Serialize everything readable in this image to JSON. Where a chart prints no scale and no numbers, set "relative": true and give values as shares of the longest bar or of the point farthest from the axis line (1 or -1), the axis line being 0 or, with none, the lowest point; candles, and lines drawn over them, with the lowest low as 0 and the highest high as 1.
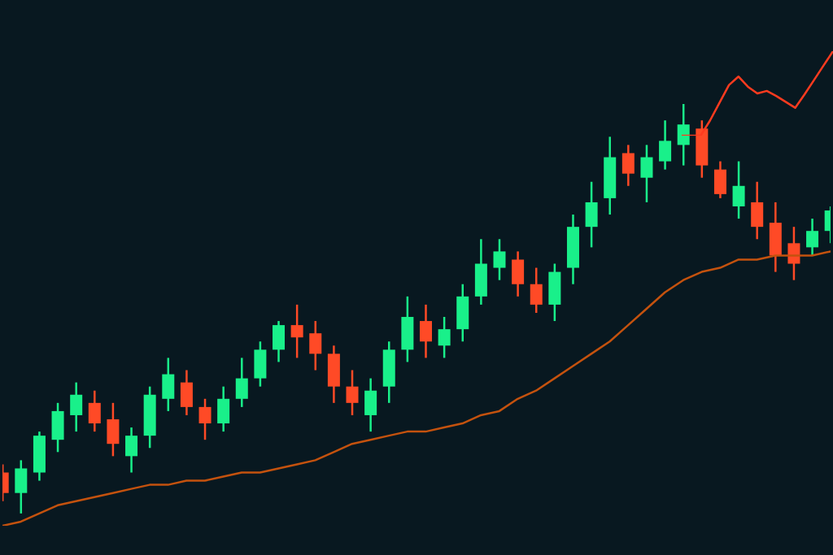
{
  "chart_data": [
    {
      "type": "candlestick",
      "relative": true,
      "categories": [
        null,
        null,
        null,
        null,
        null,
        null,
        null,
        null,
        null,
        null,
        null,
        null,
        null,
        null,
        null,
        null,
        null,
        null,
        null,
        null,
        null,
        null,
        null,
        null,
        null,
        null,
        null,
        null,
        null,
        null,
        null,
        null,
        null,
        null,
        null,
        null,
        null,
        null,
        null,
        null,
        null,
        null,
        null,
        null,
        null,
        null
      ],
      "ohlc": [
        [
          0.1,
          0.12,
          0.03,
          0.05
        ],
        [
          0.05,
          0.13,
          0,
          0.11
        ],
        [
          0.1,
          0.2,
          0.08,
          0.19
        ],
        [
          0.18,
          0.27,
          0.15,
          0.25
        ],
        [
          0.24,
          0.32,
          0.2,
          0.29
        ],
        [
          0.27,
          0.3,
          0.2,
          0.22
        ],
        [
          0.23,
          0.27,
          0.14,
          0.17
        ],
        [
          0.14,
          0.21,
          0.1,
          0.19
        ],
        [
          0.19,
          0.31,
          0.16,
          0.29
        ],
        [
          0.28,
          0.38,
          0.25,
          0.34
        ],
        [
          0.32,
          0.35,
          0.24,
          0.26
        ],
        [
          0.26,
          0.28,
          0.18,
          0.22
        ],
        [
          0.22,
          0.31,
          0.2,
          0.28
        ],
        [
          0.28,
          0.38,
          0.26,
          0.33
        ],
        [
          0.33,
          0.42,
          0.31,
          0.4
        ],
        [
          0.4,
          0.47,
          0.37,
          0.46
        ],
        [
          0.46,
          0.51,
          0.38,
          0.43
        ],
        [
          0.44,
          0.47,
          0.35,
          0.39
        ],
        [
          0.39,
          0.41,
          0.27,
          0.31
        ],
        [
          0.31,
          0.35,
          0.24,
          0.27
        ],
        [
          0.24,
          0.33,
          0.2,
          0.3
        ],
        [
          0.31,
          0.42,
          0.27,
          0.4
        ],
        [
          0.4,
          0.53,
          0.37,
          0.48
        ],
        [
          0.47,
          0.51,
          0.38,
          0.42
        ],
        [
          0.41,
          0.48,
          0.38,
          0.45
        ],
        [
          0.45,
          0.56,
          0.42,
          0.53
        ],
        [
          0.53,
          0.67,
          0.51,
          0.61
        ],
        [
          0.6,
          0.67,
          0.57,
          0.64
        ],
        [
          0.62,
          0.64,
          0.53,
          0.56
        ],
        [
          0.56,
          0.6,
          0.49,
          0.51
        ],
        [
          0.51,
          0.61,
          0.47,
          0.59
        ],
        [
          0.6,
          0.73,
          0.56,
          0.7
        ],
        [
          0.7,
          0.81,
          0.65,
          0.76
        ],
        [
          0.77,
          0.92,
          0.73,
          0.87
        ],
        [
          0.88,
          0.9,
          0.8,
          0.83
        ],
        [
          0.82,
          0.9,
          0.76,
          0.87
        ],
        [
          0.86,
          0.96,
          0.84,
          0.91
        ],
        [
          0.9,
          1,
          0.85,
          0.95
        ],
        [
          0.94,
          0.96,
          0.82,
          0.85
        ],
        [
          0.84,
          0.86,
          0.77,
          0.78
        ],
        [
          0.75,
          0.86,
          0.72,
          0.8
        ],
        [
          0.76,
          0.81,
          0.67,
          0.7
        ],
        [
          0.71,
          0.76,
          0.59,
          0.63
        ],
        [
          0.66,
          0.7,
          0.57,
          0.61
        ],
        [
          0.65,
          0.72,
          0.63,
          0.69
        ],
        [
          0.69,
          0.75,
          0.66,
          0.74
        ]
      ],
      "colors": [
        "#ff4a26",
        "#19f08a",
        "#19f08a",
        "#19f08a",
        "#19f08a",
        "#ff4a26",
        "#ff4a26",
        "#19f08a",
        "#19f08a",
        "#19f08a",
        "#ff4a26",
        "#ff4a26",
        "#19f08a",
        "#19f08a",
        "#19f08a",
        "#19f08a",
        "#ff4a26",
        "#ff4a26",
        "#ff4a26",
        "#ff4a26",
        "#19f08a",
        "#19f08a",
        "#19f08a",
        "#ff4a26",
        "#19f08a",
        "#19f08a",
        "#19f08a",
        "#19f08a",
        "#ff4a26",
        "#ff4a26",
        "#19f08a",
        "#19f08a",
        "#19f08a",
        "#19f08a",
        "#ff4a26",
        "#19f08a",
        "#19f08a",
        "#19f08a",
        "#ff4a26",
        "#ff4a26",
        "#19f08a",
        "#ff4a26",
        "#ff4a26",
        "#ff4a26",
        "#19f08a",
        "#19f08a"
      ],
      "series": [
        {
          "type": "line",
          "color": "#c4520e",
          "values": [
            -0.03,
            -0.02,
            0,
            0.02,
            0.03,
            0.04,
            0.05,
            0.06,
            0.07,
            0.07,
            0.08,
            0.08,
            0.09,
            0.1,
            0.1,
            0.11,
            0.12,
            0.13,
            0.15,
            0.17,
            0.18,
            0.19,
            0.2,
            0.2,
            0.21,
            0.22,
            0.24,
            0.25,
            0.28,
            0.3,
            0.33,
            0.36,
            0.39,
            0.42,
            0.46,
            0.5,
            0.54,
            0.57,
            0.59,
            0.6,
            0.62,
            0.62,
            0.63,
            0.63,
            0.63,
            0.64
          ]
        }
      ]
    },
    {
      "type": "line",
      "relative": true,
      "categories": [
        null,
        null,
        null,
        null,
        null,
        null,
        null,
        null,
        null,
        null,
        null,
        null,
        null,
        null,
        null,
        null,
        null
      ],
      "series": [
        {
          "color": "#ff3b1f",
          "values": [
            0,
            0,
            0,
            0.18,
            0.39,
            0.6,
            0.7,
            0.58,
            0.5,
            0.53,
            0.47,
            0.4,
            0.33,
            0.49,
            0.66,
            0.83,
            1
          ]
        }
      ]
    }
  ]
}
